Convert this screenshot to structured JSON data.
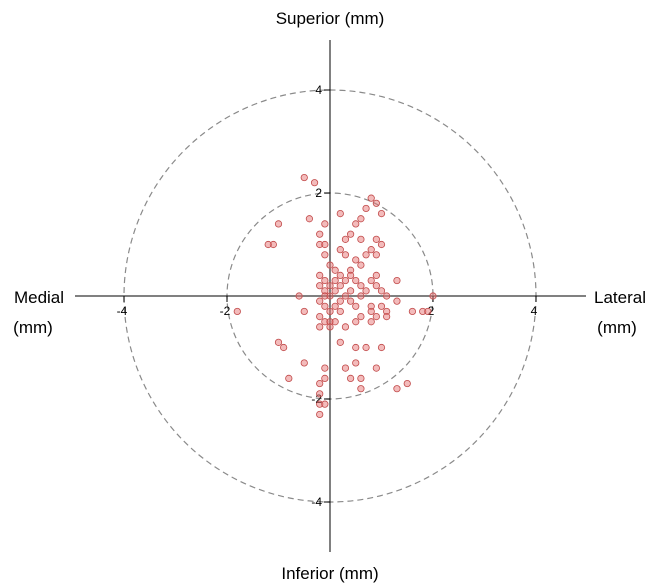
{
  "chart_data": {
    "type": "scatter",
    "title": "",
    "labels": {
      "top": "Superior (mm)",
      "bottom": "Inferior (mm)",
      "left": [
        "Medial",
        "(mm)"
      ],
      "right": [
        "Lateral",
        "(mm)"
      ]
    },
    "xlim": [
      -5,
      5
    ],
    "ylim": [
      -5,
      5
    ],
    "x_ticks": [
      -4,
      -2,
      2,
      4
    ],
    "y_ticks": [
      4,
      2,
      -2,
      -4
    ],
    "reference_circles": [
      2,
      4
    ],
    "grid": false,
    "point_color": "#e87878",
    "point_stroke": "#c14a4a",
    "circle_color": "#8a8a8a",
    "points": [
      [
        -0.5,
        2.3
      ],
      [
        -0.3,
        2.2
      ],
      [
        0.8,
        1.9
      ],
      [
        0.9,
        1.8
      ],
      [
        0.7,
        1.7
      ],
      [
        0.2,
        1.6
      ],
      [
        -0.4,
        1.5
      ],
      [
        0.6,
        1.5
      ],
      [
        1.0,
        1.6
      ],
      [
        -1.0,
        1.4
      ],
      [
        -0.1,
        1.4
      ],
      [
        0.5,
        1.4
      ],
      [
        -0.2,
        1.2
      ],
      [
        0.4,
        1.2
      ],
      [
        0.9,
        1.1
      ],
      [
        -1.1,
        1.0
      ],
      [
        -1.2,
        1.0
      ],
      [
        -0.2,
        1.0
      ],
      [
        -0.1,
        1.0
      ],
      [
        0.3,
        1.1
      ],
      [
        0.6,
        1.1
      ],
      [
        1.0,
        1.0
      ],
      [
        0.2,
        0.9
      ],
      [
        0.8,
        0.9
      ],
      [
        -0.1,
        0.8
      ],
      [
        0.3,
        0.8
      ],
      [
        0.7,
        0.8
      ],
      [
        0.9,
        0.8
      ],
      [
        0.0,
        0.6
      ],
      [
        0.5,
        0.7
      ],
      [
        0.1,
        0.5
      ],
      [
        0.4,
        0.5
      ],
      [
        0.6,
        0.6
      ],
      [
        -0.2,
        0.4
      ],
      [
        0.2,
        0.4
      ],
      [
        0.4,
        0.4
      ],
      [
        0.9,
        0.4
      ],
      [
        -0.1,
        0.3
      ],
      [
        0.1,
        0.3
      ],
      [
        0.3,
        0.3
      ],
      [
        0.5,
        0.3
      ],
      [
        0.8,
        0.3
      ],
      [
        1.3,
        0.3
      ],
      [
        -0.2,
        0.2
      ],
      [
        0.0,
        0.2
      ],
      [
        0.2,
        0.2
      ],
      [
        0.6,
        0.2
      ],
      [
        0.9,
        0.2
      ],
      [
        -0.1,
        0.1
      ],
      [
        0.1,
        0.1
      ],
      [
        0.4,
        0.1
      ],
      [
        0.7,
        0.1
      ],
      [
        1.0,
        0.1
      ],
      [
        -0.6,
        0.0
      ],
      [
        -0.1,
        0.0
      ],
      [
        0.0,
        0.0
      ],
      [
        0.3,
        0.0
      ],
      [
        0.6,
        0.0
      ],
      [
        1.1,
        0.0
      ],
      [
        2.0,
        0.0
      ],
      [
        -0.2,
        -0.1
      ],
      [
        0.2,
        -0.1
      ],
      [
        0.4,
        -0.1
      ],
      [
        1.3,
        -0.1
      ],
      [
        -0.1,
        -0.2
      ],
      [
        0.1,
        -0.2
      ],
      [
        0.5,
        -0.2
      ],
      [
        0.8,
        -0.2
      ],
      [
        1.0,
        -0.2
      ],
      [
        -1.8,
        -0.3
      ],
      [
        -0.5,
        -0.3
      ],
      [
        0.0,
        -0.3
      ],
      [
        0.2,
        -0.3
      ],
      [
        0.8,
        -0.3
      ],
      [
        1.1,
        -0.3
      ],
      [
        1.6,
        -0.3
      ],
      [
        1.8,
        -0.3
      ],
      [
        1.9,
        -0.3
      ],
      [
        -0.2,
        -0.4
      ],
      [
        0.6,
        -0.4
      ],
      [
        0.9,
        -0.4
      ],
      [
        1.1,
        -0.4
      ],
      [
        -0.1,
        -0.5
      ],
      [
        0.0,
        -0.5
      ],
      [
        0.1,
        -0.5
      ],
      [
        0.5,
        -0.5
      ],
      [
        0.8,
        -0.5
      ],
      [
        -0.2,
        -0.6
      ],
      [
        0.0,
        -0.6
      ],
      [
        0.3,
        -0.6
      ],
      [
        -1.0,
        -0.9
      ],
      [
        0.2,
        -0.9
      ],
      [
        -0.9,
        -1.0
      ],
      [
        0.5,
        -1.0
      ],
      [
        0.7,
        -1.0
      ],
      [
        1.0,
        -1.0
      ],
      [
        -0.5,
        -1.3
      ],
      [
        0.5,
        -1.3
      ],
      [
        -0.1,
        -1.4
      ],
      [
        0.3,
        -1.4
      ],
      [
        0.9,
        -1.4
      ],
      [
        -0.8,
        -1.6
      ],
      [
        -0.1,
        -1.6
      ],
      [
        0.6,
        -1.6
      ],
      [
        1.5,
        -1.7
      ],
      [
        -0.2,
        -1.7
      ],
      [
        0.4,
        -1.6
      ],
      [
        -0.2,
        -1.9
      ],
      [
        0.6,
        -1.8
      ],
      [
        1.3,
        -1.8
      ],
      [
        -0.2,
        -2.1
      ],
      [
        -0.1,
        -2.1
      ],
      [
        -0.2,
        -2.3
      ]
    ]
  }
}
